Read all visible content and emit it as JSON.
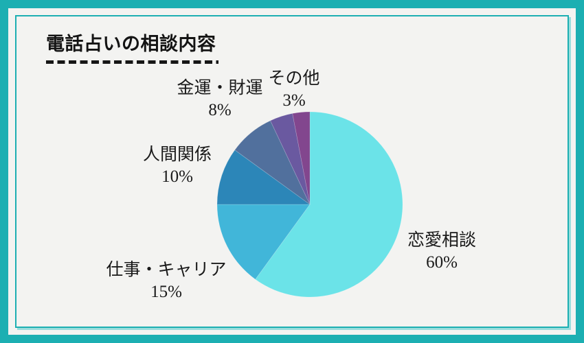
{
  "title": {
    "text": "電話占いの相談内容"
  },
  "theme": {
    "frame_color": "#1cafb2",
    "background_color": "#f3f3f1",
    "text_color": "#1a1a1a",
    "inner_frame_shadow": "#9adddd",
    "underline_color": "#161616"
  },
  "chart_data": {
    "type": "pie",
    "title": "電話占いの相談内容",
    "direction": "clockwise",
    "start_angle_deg": 0,
    "legend": "none",
    "label_style": "category name + percent placed outside slices",
    "segments": [
      {
        "key": "love",
        "label": "恋愛相談",
        "value": 60,
        "percent_label": "60%",
        "color": "#6be3e8"
      },
      {
        "key": "work-career",
        "label": "仕事・キャリア",
        "value": 15,
        "percent_label": "15%",
        "color": "#41b6d9"
      },
      {
        "key": "relationships",
        "label": "人間関係",
        "value": 10,
        "percent_label": "10%",
        "color": "#2c86b8"
      },
      {
        "key": "money-fortune",
        "label": "金運・財運",
        "value": 8,
        "percent_label": "8%",
        "color": "#51709d"
      },
      {
        "key": "unlabeled",
        "label": "",
        "value": 4,
        "percent_label": "",
        "color": "#6a59a0"
      },
      {
        "key": "other",
        "label": "その他",
        "value": 3,
        "percent_label": "3%",
        "color": "#82468e"
      }
    ]
  }
}
